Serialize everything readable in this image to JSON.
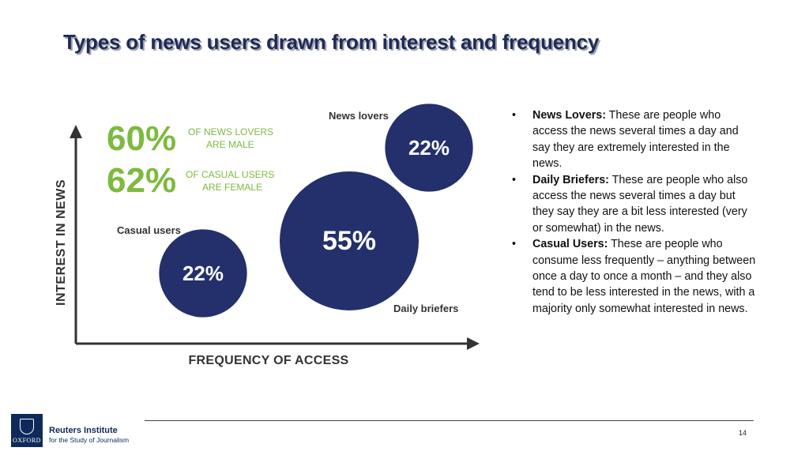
{
  "title": "Types of news users drawn from interest and frequency",
  "chart_data": {
    "type": "bubble",
    "xlabel": "FREQUENCY OF ACCESS",
    "ylabel": "INTEREST IN NEWS",
    "grid": false,
    "series": [
      {
        "name": "Casual users",
        "label": "22%",
        "value": 22
      },
      {
        "name": "Daily briefers",
        "label": "55%",
        "value": 55
      },
      {
        "name": "News lovers",
        "label": "22%",
        "value": 22
      }
    ],
    "stats": [
      {
        "value": "60%",
        "line1": "OF NEWS LOVERS",
        "line2": "ARE MALE"
      },
      {
        "value": "62%",
        "line1": "OF CASUAL USERS",
        "line2": "ARE FEMALE"
      }
    ]
  },
  "colors": {
    "bubble": "#23306b",
    "stat_green": "#7dba3f",
    "stat_text": "#7dba3f",
    "axis": "#333333",
    "label": "#333333"
  },
  "bullets": [
    {
      "term": "News Lovers:",
      "text": " These are people who access the news several times a day and say they are extremely interested in the news."
    },
    {
      "term": "Daily Briefers:",
      "text": " These are people who also access the news several times a day but they say they are a bit less interested (very or somewhat) in the news."
    },
    {
      "term": "Casual Users:",
      "text": " These are people who consume less frequently – anything between once a day to once a month – and they also tend to be less interested in the news, with a majority only somewhat interested in news."
    }
  ],
  "bullet_char": "•",
  "footer": {
    "page_number": "14",
    "logo_title": "Reuters Institute",
    "logo_subtitle": "for the Study of Journalism",
    "crest_text": "OXFORD"
  }
}
